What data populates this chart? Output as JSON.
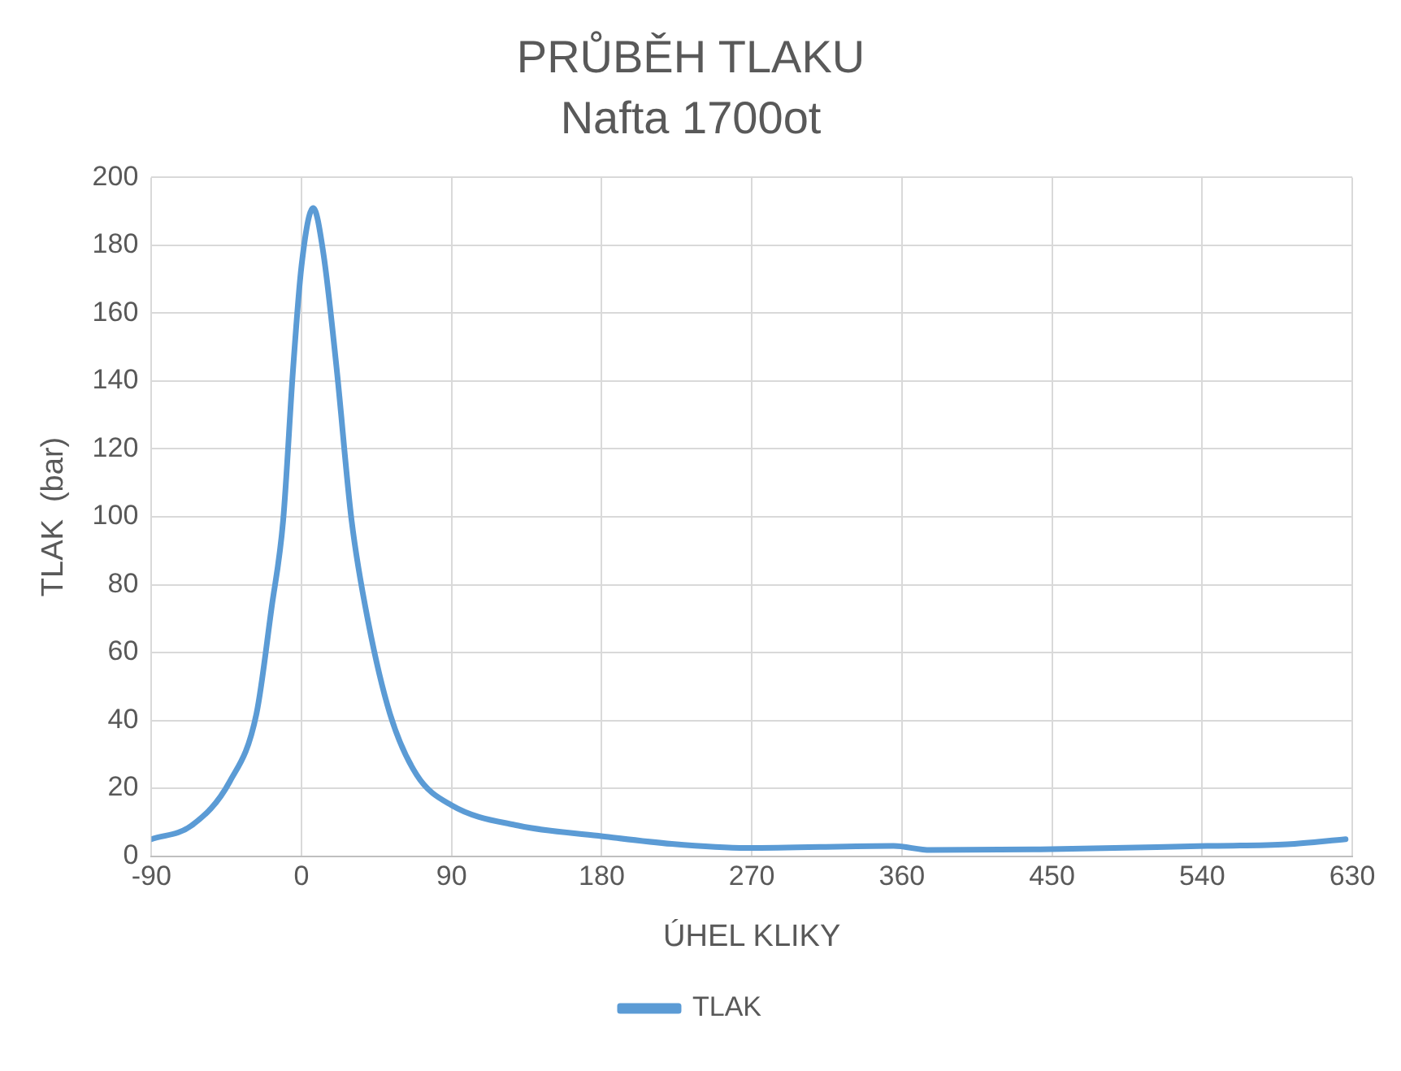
{
  "chart_data": {
    "type": "line",
    "title": "PRŮBĚH TLAKU",
    "subtitle": "Nafta 1700ot",
    "xlabel": "ÚHEL KLIKY",
    "ylabel": "TLAK  (bar)",
    "xlim": [
      -90,
      630
    ],
    "xticks": [
      -90,
      0,
      90,
      180,
      270,
      360,
      450,
      540,
      630
    ],
    "ylim": [
      0,
      200
    ],
    "yticks": [
      0,
      20,
      40,
      60,
      80,
      100,
      120,
      140,
      160,
      180,
      200
    ],
    "grid": true,
    "legend": "bottom",
    "marker": "none",
    "line_style": "solid",
    "series": [
      {
        "name": "TLAK",
        "color": "#5b9bd5",
        "x": [
          -90,
          -66,
          -43,
          -27,
          -18,
          -11,
          -5,
          0,
          7,
          13,
          21,
          30,
          40,
          53,
          69,
          90,
          130,
          178,
          222,
          267,
          355,
          377,
          443,
          543,
          591,
          626
        ],
        "values": [
          5,
          9,
          22,
          42,
          73,
          99,
          144,
          174,
          191,
          178,
          144,
          99,
          69,
          42,
          24,
          15,
          9,
          6,
          3.6,
          2.4,
          3,
          1.8,
          2,
          3,
          3.5,
          5
        ]
      }
    ]
  }
}
